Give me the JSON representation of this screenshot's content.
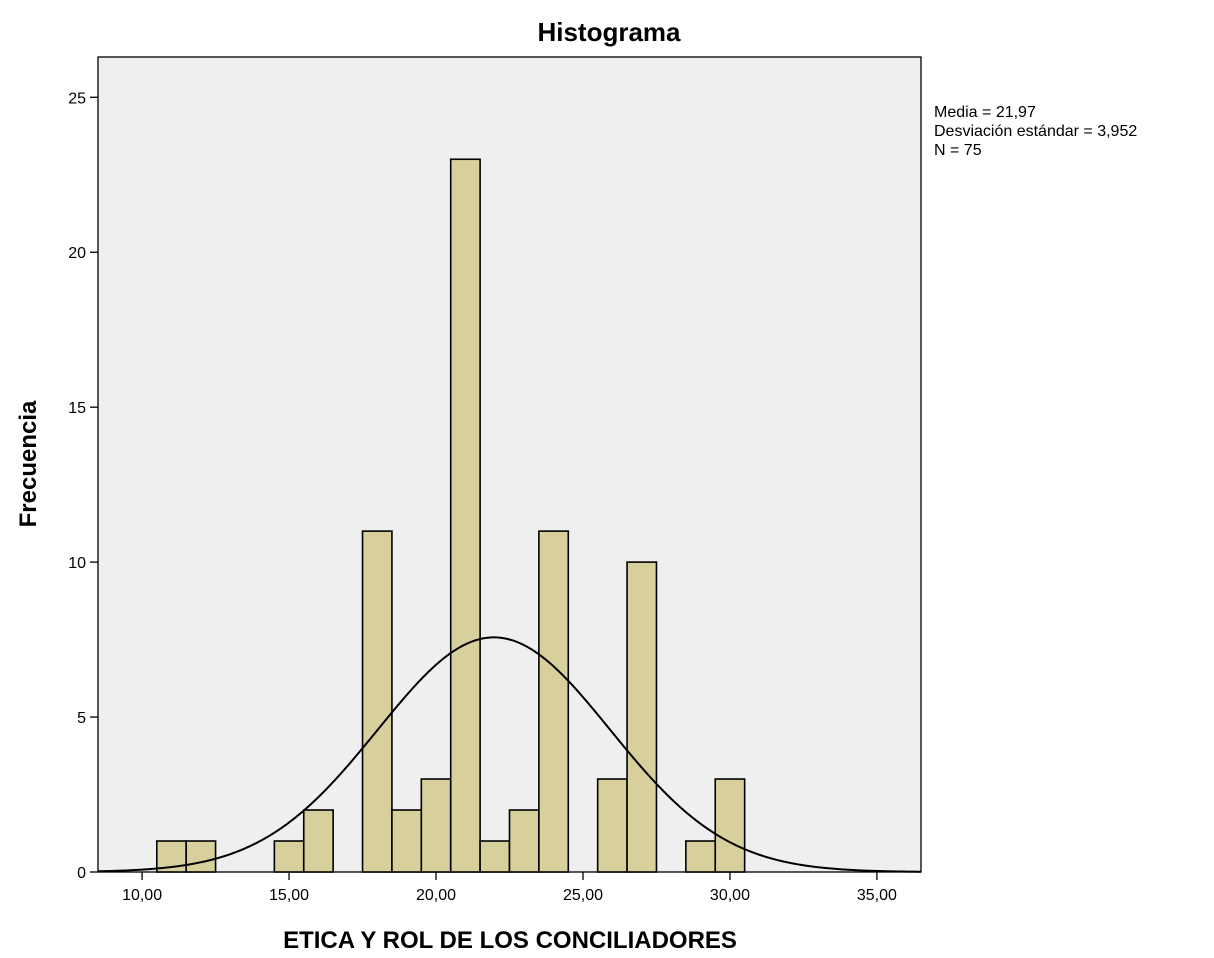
{
  "chart_data": {
    "type": "bar",
    "subtype": "histogram",
    "title": "Histograma",
    "xlabel": "ETICA Y ROL DE LOS CONCILIADORES",
    "ylabel": "Frecuencia",
    "xlim": [
      8.5,
      36.5
    ],
    "ylim": [
      0,
      26.3
    ],
    "xticks": [
      10,
      15,
      20,
      25,
      30,
      35
    ],
    "xtick_labels": [
      "10,00",
      "15,00",
      "20,00",
      "25,00",
      "30,00",
      "35,00"
    ],
    "yticks": [
      0,
      5,
      10,
      15,
      20,
      25
    ],
    "ytick_labels": [
      "0",
      "5",
      "10",
      "15",
      "20",
      "25"
    ],
    "bins": [
      {
        "from": 10.5,
        "to": 11.5,
        "count": 1
      },
      {
        "from": 11.5,
        "to": 12.5,
        "count": 1
      },
      {
        "from": 14.5,
        "to": 15.5,
        "count": 1
      },
      {
        "from": 15.5,
        "to": 16.5,
        "count": 2
      },
      {
        "from": 17.5,
        "to": 18.5,
        "count": 11
      },
      {
        "from": 18.5,
        "to": 19.5,
        "count": 2
      },
      {
        "from": 19.5,
        "to": 20.5,
        "count": 3
      },
      {
        "from": 20.5,
        "to": 21.5,
        "count": 23
      },
      {
        "from": 21.5,
        "to": 22.5,
        "count": 1
      },
      {
        "from": 22.5,
        "to": 23.5,
        "count": 2
      },
      {
        "from": 23.5,
        "to": 24.5,
        "count": 11
      },
      {
        "from": 25.5,
        "to": 26.5,
        "count": 3
      },
      {
        "from": 26.5,
        "to": 27.5,
        "count": 10
      },
      {
        "from": 28.5,
        "to": 29.5,
        "count": 1
      },
      {
        "from": 29.5,
        "to": 30.5,
        "count": 3
      }
    ],
    "normal_curve": {
      "mean": 21.97,
      "sd": 3.952,
      "n": 75,
      "bin_width": 1
    },
    "stats_text": [
      "Media = 21,97",
      "Desviación estándar = 3,952",
      "N = 75"
    ],
    "colors": {
      "bar_fill": "#d7d09c",
      "bar_stroke": "#000000",
      "plot_background": "#efefef",
      "curve": "#000000"
    },
    "grid": false,
    "legend": "none"
  }
}
